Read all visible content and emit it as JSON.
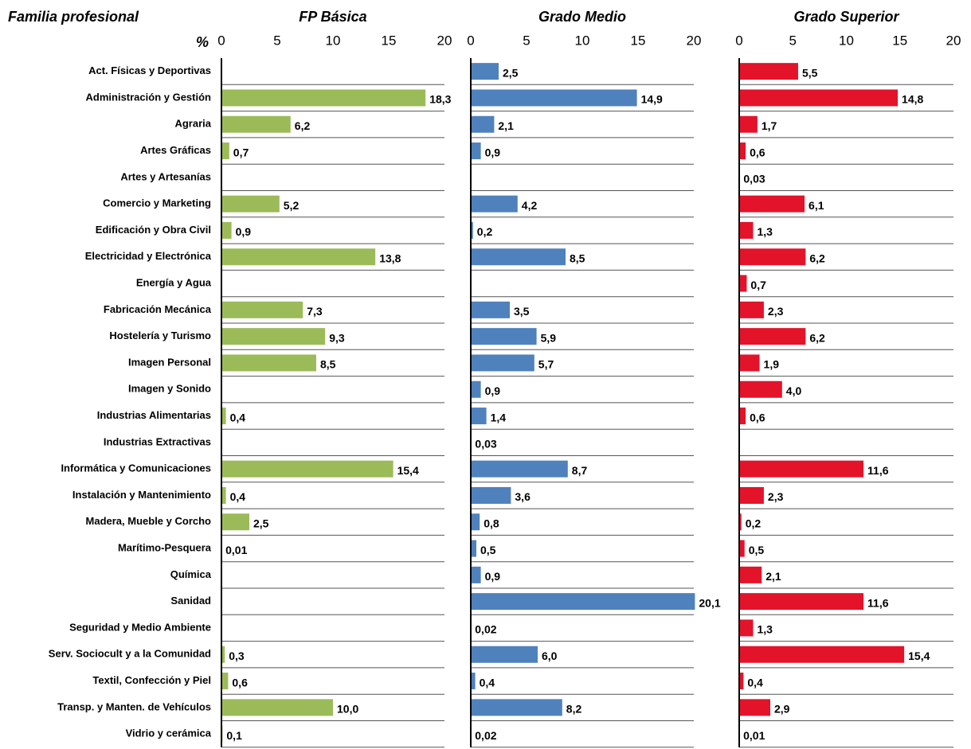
{
  "row_header": "Familia profesional",
  "unit_label": "%",
  "categories": [
    "Act. Físicas y Deportivas",
    "Administración y Gestión",
    "Agraria",
    "Artes Gráficas",
    "Artes y Artesanías",
    "Comercio y Marketing",
    "Edificación y Obra Civil",
    "Electricidad y Electrónica",
    "Energía y Agua",
    "Fabricación Mecánica",
    "Hostelería y Turismo",
    "Imagen Personal",
    "Imagen y Sonido",
    "Industrias Alimentarias",
    "Industrias Extractivas",
    "Informática y Comunicaciones",
    "Instalación y Mantenimiento",
    "Madera, Mueble y Corcho",
    "Marítimo-Pesquera",
    "Química",
    "Sanidad",
    "Seguridad y Medio Ambiente",
    "Serv. Sociocult y a la Comunidad",
    "Textil, Confección y Piel",
    "Transp. y Manten. de Vehículos",
    "Vidrio y cerámica"
  ],
  "chart_data": [
    {
      "type": "bar",
      "title": "FP Básica",
      "color": "#9bbb59",
      "xlim": [
        0,
        20
      ],
      "xticks": [
        0,
        5,
        10,
        15,
        20
      ],
      "values": [
        null,
        18.3,
        6.2,
        0.7,
        null,
        5.2,
        0.9,
        13.8,
        null,
        7.3,
        9.3,
        8.5,
        null,
        0.4,
        null,
        15.4,
        0.4,
        2.5,
        0.01,
        null,
        null,
        null,
        0.3,
        0.6,
        10.0,
        0.1
      ],
      "value_labels": [
        null,
        "18,3",
        "6,2",
        "0,7",
        null,
        "5,2",
        "0,9",
        "13,8",
        null,
        "7,3",
        "9,3",
        "8,5",
        null,
        "0,4",
        null,
        "15,4",
        "0,4",
        "2,5",
        "0,01",
        null,
        null,
        null,
        "0,3",
        "0,6",
        "10,0",
        "0,1"
      ]
    },
    {
      "type": "bar",
      "title": "Grado Medio",
      "color": "#4f81bd",
      "xlim": [
        0,
        20
      ],
      "xticks": [
        0,
        5,
        10,
        15,
        20
      ],
      "values": [
        2.5,
        14.9,
        2.1,
        0.9,
        null,
        4.2,
        0.2,
        8.5,
        null,
        3.5,
        5.9,
        5.7,
        0.9,
        1.4,
        0.03,
        8.7,
        3.6,
        0.8,
        0.5,
        0.9,
        20.1,
        0.02,
        6.0,
        0.4,
        8.2,
        0.02
      ],
      "value_labels": [
        "2,5",
        "14,9",
        "2,1",
        "0,9",
        null,
        "4,2",
        "0,2",
        "8,5",
        null,
        "3,5",
        "5,9",
        "5,7",
        "0,9",
        "1,4",
        "0,03",
        "8,7",
        "3,6",
        "0,8",
        "0,5",
        "0,9",
        "20,1",
        "0,02",
        "6,0",
        "0,4",
        "8,2",
        "0,02"
      ]
    },
    {
      "type": "bar",
      "title": "Grado Superior",
      "color": "#e3132a",
      "xlim": [
        0,
        20
      ],
      "xticks": [
        0,
        5,
        10,
        15,
        20
      ],
      "values": [
        5.5,
        14.8,
        1.7,
        0.6,
        0.03,
        6.1,
        1.3,
        6.2,
        0.7,
        2.3,
        6.2,
        1.9,
        4.0,
        0.6,
        null,
        11.6,
        2.3,
        0.2,
        0.5,
        2.1,
        11.6,
        1.3,
        15.4,
        0.4,
        2.9,
        0.01
      ],
      "value_labels": [
        "5,5",
        "14,8",
        "1,7",
        "0,6",
        "0,03",
        "6,1",
        "1,3",
        "6,2",
        "0,7",
        "2,3",
        "6,2",
        "1,9",
        "4,0",
        "0,6",
        null,
        "11,6",
        "2,3",
        "0,2",
        "0,5",
        "2,1",
        "11,6",
        "1,3",
        "15,4",
        "0,4",
        "2,9",
        "0,01"
      ]
    }
  ]
}
